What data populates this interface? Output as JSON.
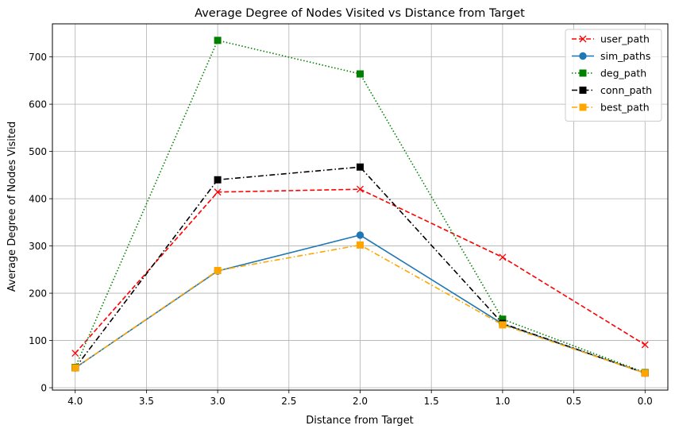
{
  "chart_data": {
    "type": "line",
    "title": "Average Degree of Nodes Visited vs Distance from Target",
    "xlabel": "Distance from Target",
    "ylabel": "Average Degree of Nodes Visited",
    "x": [
      4,
      3,
      2,
      1,
      0
    ],
    "xlim": [
      4.16,
      -0.16
    ],
    "ylim": [
      -5,
      770
    ],
    "xticks": [
      4.0,
      3.5,
      3.0,
      2.5,
      2.0,
      1.5,
      1.0,
      0.5,
      0.0
    ],
    "xtick_labels": [
      "4.0",
      "3.5",
      "3.0",
      "2.5",
      "2.0",
      "1.5",
      "1.0",
      "0.5",
      "0.0"
    ],
    "yticks": [
      0,
      100,
      200,
      300,
      400,
      500,
      600,
      700
    ],
    "ytick_labels": [
      "0",
      "100",
      "200",
      "300",
      "400",
      "500",
      "600",
      "700"
    ],
    "grid": true,
    "legend_position": "top-right",
    "series": [
      {
        "name": "user_path",
        "values": [
          73,
          414,
          420,
          276,
          91
        ],
        "color": "#ff0000",
        "dash": "dashed",
        "marker": "x"
      },
      {
        "name": "sim_paths",
        "values": [
          42,
          247,
          323,
          135,
          31
        ],
        "color": "#1f77b4",
        "dash": "solid",
        "marker": "circle"
      },
      {
        "name": "deg_path",
        "values": [
          43,
          735,
          664,
          145,
          32
        ],
        "color": "#008000",
        "dash": "dotted",
        "marker": "square"
      },
      {
        "name": "conn_path",
        "values": [
          42,
          440,
          467,
          136,
          31
        ],
        "color": "#000000",
        "dash": "dashdot",
        "marker": "square"
      },
      {
        "name": "best_path",
        "values": [
          42,
          248,
          302,
          133,
          31
        ],
        "color": "#ffa500",
        "dash": "dashdot",
        "marker": "square"
      }
    ]
  }
}
